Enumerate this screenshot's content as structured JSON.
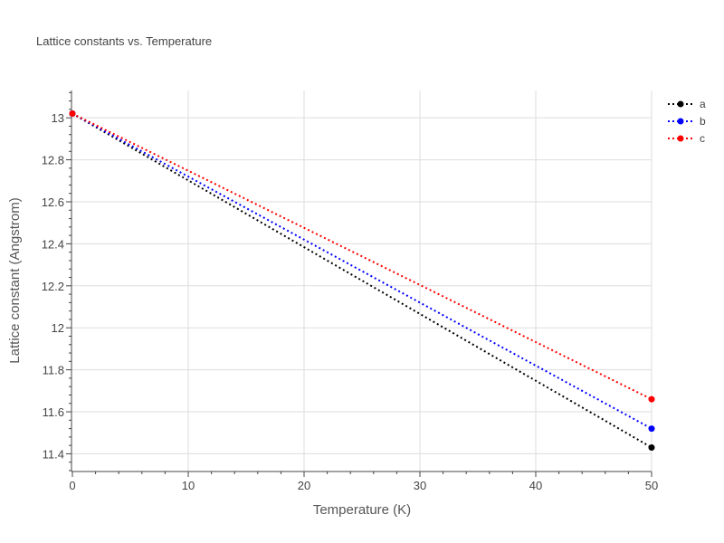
{
  "chart_data": {
    "type": "line",
    "title": "Lattice constants vs. Temperature",
    "xlabel": "Temperature (K)",
    "ylabel": "Lattice constant (Angstrom)",
    "xlim": [
      0,
      50
    ],
    "ylim": [
      11.32,
      13.13
    ],
    "x_ticks": [
      0,
      10,
      20,
      30,
      40,
      50
    ],
    "y_ticks": [
      11.4,
      11.6,
      11.8,
      12,
      12.2,
      12.4,
      12.6,
      12.8,
      13
    ],
    "x_tick_labels": [
      "0",
      "10",
      "20",
      "30",
      "40",
      "50"
    ],
    "y_tick_labels": [
      "11.4",
      "11.6",
      "11.8",
      "12",
      "12.2",
      "12.4",
      "12.6",
      "12.8",
      "13"
    ],
    "grid": true,
    "legend_position": "top-right",
    "series": [
      {
        "name": "a",
        "color": "#000000",
        "x": [
          0,
          50
        ],
        "y": [
          13.02,
          11.43
        ]
      },
      {
        "name": "b",
        "color": "#0000ff",
        "x": [
          0,
          50
        ],
        "y": [
          13.02,
          11.52
        ]
      },
      {
        "name": "c",
        "color": "#ff0000",
        "x": [
          0,
          50
        ],
        "y": [
          13.02,
          11.66
        ]
      }
    ]
  }
}
